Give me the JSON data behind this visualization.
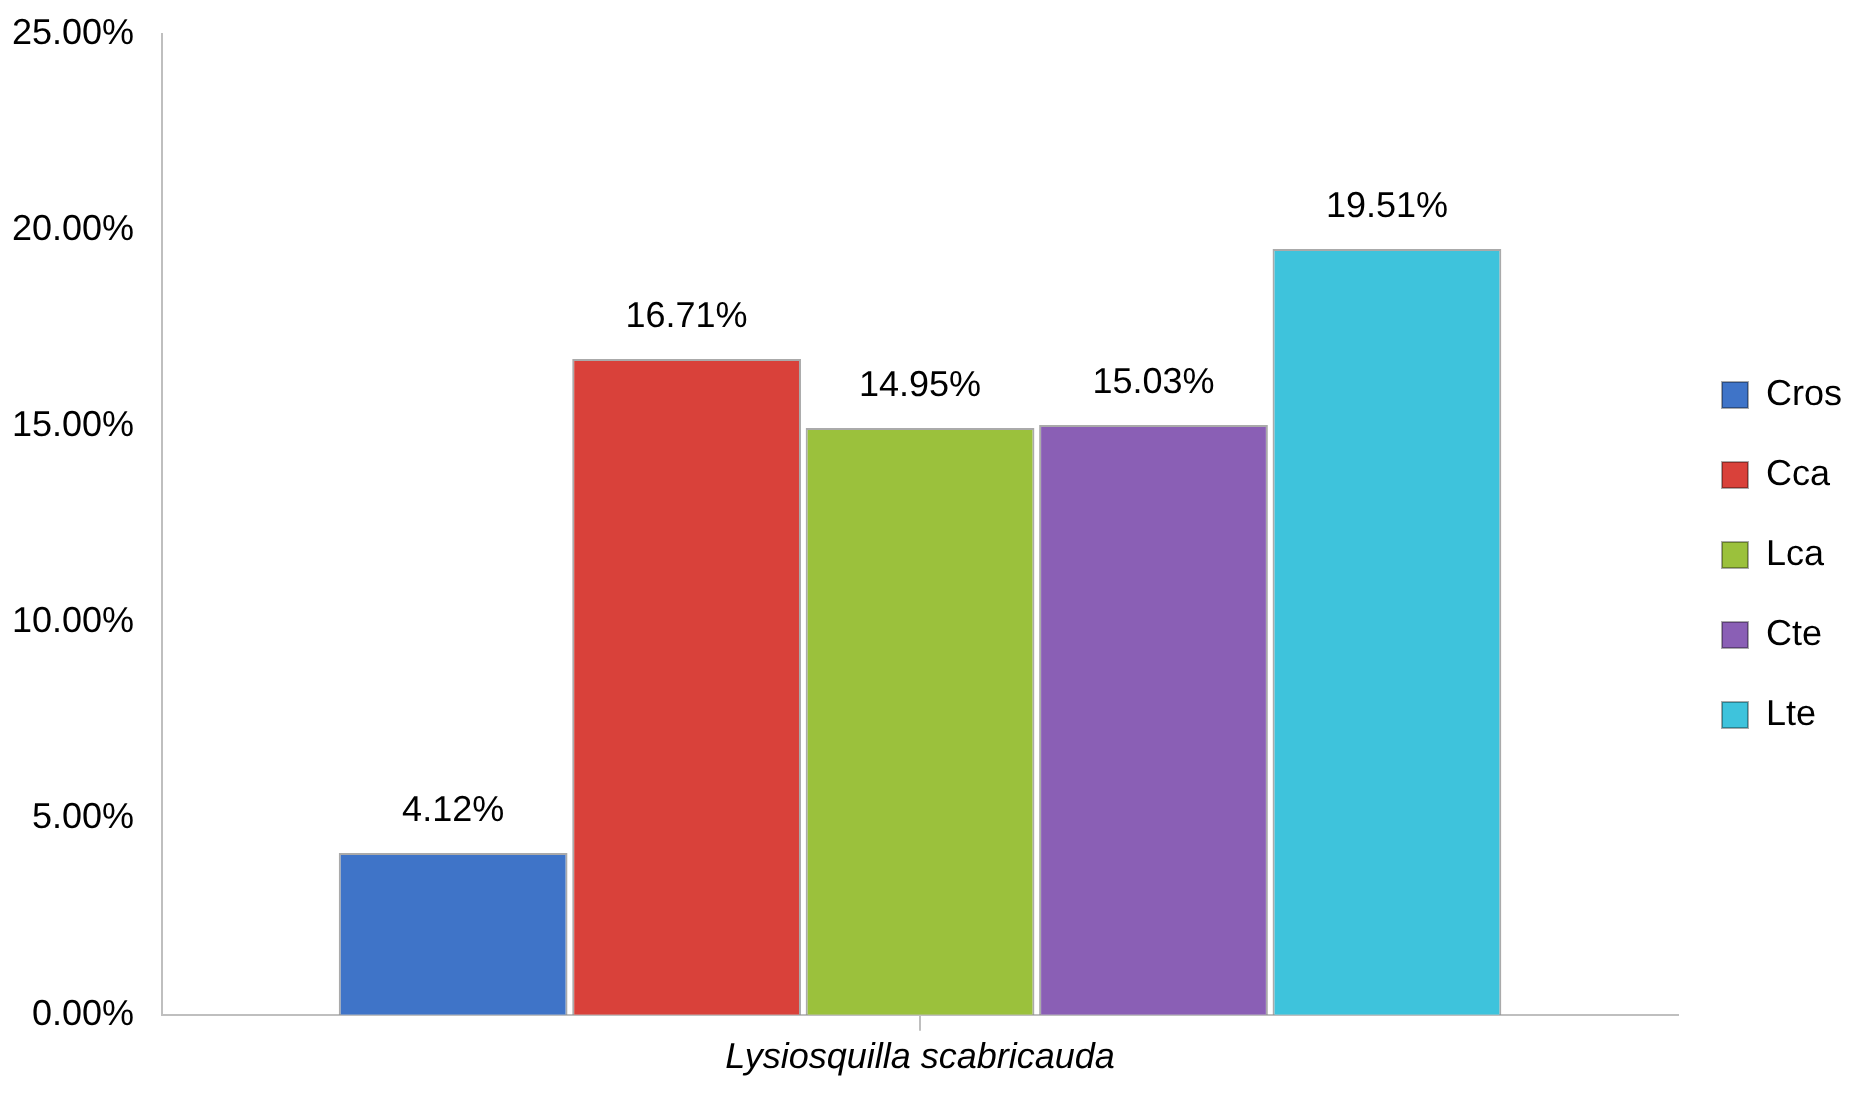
{
  "chart_data": {
    "type": "bar",
    "categories": [
      "Lysiosquilla scabricauda"
    ],
    "series": [
      {
        "name": "Cros",
        "color": "#3f74c8",
        "values": [
          4.12
        ],
        "value_labels": [
          "4.12%"
        ]
      },
      {
        "name": "Cca",
        "color": "#d9413a",
        "values": [
          16.71
        ],
        "value_labels": [
          "16.71%"
        ]
      },
      {
        "name": "Lca",
        "color": "#9bc13c",
        "values": [
          14.95
        ],
        "value_labels": [
          "14.95%"
        ]
      },
      {
        "name": "Cte",
        "color": "#8a5fb5",
        "values": [
          15.03
        ],
        "value_labels": [
          "15.03%"
        ]
      },
      {
        "name": "Lte",
        "color": "#3ec3dc",
        "values": [
          19.51
        ],
        "value_labels": [
          "19.51%"
        ]
      }
    ],
    "ylim": [
      0,
      25
    ],
    "yticks": [
      {
        "value": 0,
        "label": "0.00%"
      },
      {
        "value": 5,
        "label": "5.00%"
      },
      {
        "value": 10,
        "label": "10.00%"
      },
      {
        "value": 15,
        "label": "15.00%"
      },
      {
        "value": 20,
        "label": "20.00%"
      },
      {
        "value": 25,
        "label": "25.00%"
      }
    ],
    "legend": "right"
  }
}
